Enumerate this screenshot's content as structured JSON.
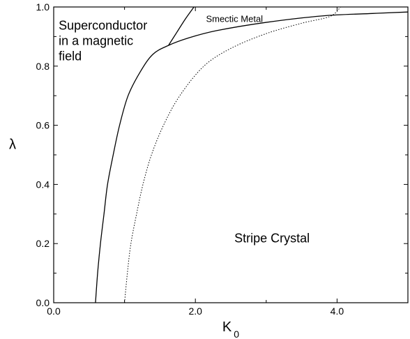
{
  "chart_data": {
    "type": "line",
    "xlabel": "K",
    "xlabel_subscript": "0",
    "ylabel": "λ",
    "xlim": [
      0,
      5
    ],
    "ylim": [
      0,
      1
    ],
    "grid": false,
    "x_ticks": [
      {
        "value": 0,
        "label": "0.0"
      },
      {
        "value": 2,
        "label": "2.0"
      },
      {
        "value": 4,
        "label": "4.0"
      }
    ],
    "y_ticks": [
      {
        "value": 0,
        "label": "0.0"
      },
      {
        "value": 0.2,
        "label": "0.2"
      },
      {
        "value": 0.4,
        "label": "0.4"
      },
      {
        "value": 0.6,
        "label": "0.6"
      },
      {
        "value": 0.8,
        "label": "0.8"
      },
      {
        "value": 1.0,
        "label": "1.0"
      }
    ],
    "series": [
      {
        "style": "solid",
        "points": [
          [
            0.59,
            0.0
          ],
          [
            0.62,
            0.1
          ],
          [
            0.66,
            0.2
          ],
          [
            0.71,
            0.3
          ],
          [
            0.76,
            0.4
          ],
          [
            0.84,
            0.5
          ],
          [
            0.93,
            0.6
          ],
          [
            1.05,
            0.7
          ],
          [
            1.22,
            0.78
          ],
          [
            1.4,
            0.84
          ],
          [
            1.62,
            0.87
          ],
          [
            1.9,
            0.895
          ],
          [
            2.3,
            0.92
          ],
          [
            3.0,
            0.948
          ],
          [
            3.8,
            0.97
          ],
          [
            4.5,
            0.978
          ],
          [
            5.0,
            0.983
          ]
        ]
      },
      {
        "style": "solid",
        "points": [
          [
            1.62,
            0.87
          ],
          [
            1.74,
            0.915
          ],
          [
            1.86,
            0.96
          ],
          [
            1.98,
            1.0
          ]
        ]
      },
      {
        "style": "dotted",
        "points": [
          [
            1.0,
            0.0
          ],
          [
            1.04,
            0.1
          ],
          [
            1.09,
            0.2
          ],
          [
            1.17,
            0.3
          ],
          [
            1.26,
            0.4
          ],
          [
            1.38,
            0.5
          ],
          [
            1.55,
            0.6
          ],
          [
            1.78,
            0.7
          ],
          [
            2.12,
            0.8
          ],
          [
            2.5,
            0.86
          ],
          [
            3.0,
            0.91
          ],
          [
            3.5,
            0.945
          ],
          [
            3.9,
            0.968
          ],
          [
            4.05,
            1.0
          ]
        ]
      }
    ],
    "annotations": [
      {
        "lines": [
          "Superconductor",
          "in a magnetic",
          "field"
        ],
        "x": 0.07,
        "y": 0.96,
        "size": "large"
      },
      {
        "lines": [
          "Smectic Metal"
        ],
        "x": 2.15,
        "y": 0.975,
        "size": "small"
      },
      {
        "lines": [
          "Stripe Crystal"
        ],
        "x": 2.55,
        "y": 0.24,
        "size": "large"
      }
    ]
  }
}
